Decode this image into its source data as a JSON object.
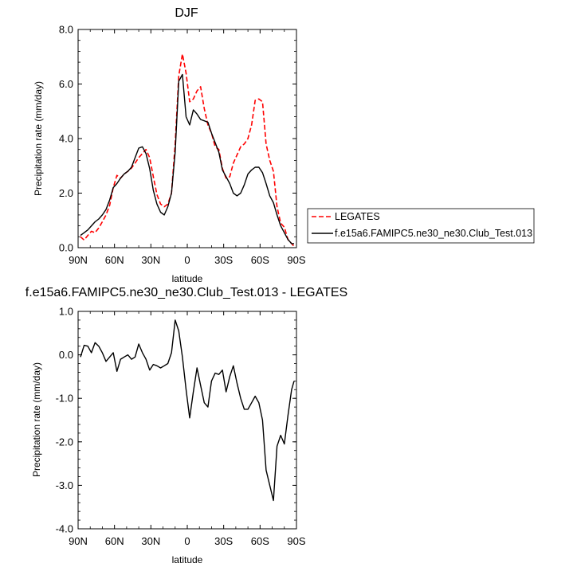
{
  "chart_data": [
    {
      "type": "line",
      "title": "DJF",
      "xlabel": "latitude",
      "ylabel": "Precipitation rate (mm/day)",
      "xlim": [
        90,
        -90
      ],
      "ylim": [
        0,
        8
      ],
      "xtick_values": [
        90,
        60,
        30,
        0,
        -30,
        -60,
        -90
      ],
      "xtick_labels": [
        "90N",
        "60N",
        "30N",
        "0",
        "30S",
        "60S",
        "90S"
      ],
      "ytick_values": [
        0,
        2,
        4,
        6,
        8
      ],
      "ytick_labels": [
        "0.0",
        "2.0",
        "4.0",
        "6.0",
        "8.0"
      ],
      "legend_position": "right",
      "series": [
        {
          "name": "LEGATES",
          "color": "#ff0000",
          "dash": true,
          "x": [
            88,
            85,
            82,
            79,
            76,
            73,
            70,
            67,
            64,
            61,
            58,
            55,
            52,
            49,
            46,
            43,
            40,
            37,
            34,
            31,
            28,
            25,
            22,
            19,
            16,
            13,
            10,
            7,
            4,
            1,
            -2,
            -5,
            -8,
            -11,
            -14,
            -17,
            -20,
            -23,
            -26,
            -29,
            -32,
            -35,
            -38,
            -41,
            -44,
            -47,
            -50,
            -53,
            -56,
            -59,
            -62,
            -65,
            -68,
            -71,
            -74,
            -77,
            -80,
            -83,
            -86,
            -88
          ],
          "y": [
            0.4,
            0.28,
            0.45,
            0.6,
            0.55,
            0.72,
            0.95,
            1.2,
            1.55,
            2.2,
            2.65,
            2.55,
            2.7,
            2.8,
            2.92,
            3.1,
            3.3,
            3.45,
            3.6,
            3.3,
            2.6,
            1.95,
            1.6,
            1.5,
            1.6,
            2.0,
            3.8,
            6.3,
            7.1,
            6.4,
            5.35,
            5.45,
            5.75,
            5.9,
            5.1,
            4.5,
            4.2,
            3.7,
            3.6,
            2.9,
            2.55,
            2.6,
            3.1,
            3.4,
            3.7,
            3.8,
            4.0,
            4.5,
            5.4,
            5.45,
            5.35,
            3.8,
            3.2,
            2.8,
            1.5,
            0.9,
            0.75,
            0.3,
            0.15,
            0.05
          ]
        },
        {
          "name": "f.e15a6.FAMIPC5.ne30_ne30.Club_Test.013",
          "color": "#000000",
          "dash": false,
          "x": [
            88,
            85,
            82,
            79,
            76,
            73,
            70,
            67,
            64,
            61,
            58,
            55,
            52,
            49,
            46,
            43,
            40,
            37,
            34,
            31,
            28,
            25,
            22,
            19,
            16,
            13,
            10,
            7,
            4,
            1,
            -2,
            -5,
            -8,
            -11,
            -14,
            -17,
            -20,
            -23,
            -26,
            -29,
            -32,
            -35,
            -38,
            -41,
            -44,
            -47,
            -50,
            -53,
            -56,
            -59,
            -62,
            -65,
            -68,
            -71,
            -74,
            -77,
            -80,
            -83,
            -86,
            -88
          ],
          "y": [
            0.45,
            0.55,
            0.65,
            0.8,
            0.95,
            1.05,
            1.2,
            1.4,
            1.75,
            2.2,
            2.35,
            2.55,
            2.7,
            2.8,
            2.95,
            3.3,
            3.65,
            3.7,
            3.45,
            2.9,
            2.1,
            1.6,
            1.3,
            1.2,
            1.5,
            2.0,
            3.5,
            6.1,
            6.35,
            4.8,
            4.5,
            5.05,
            4.9,
            4.7,
            4.65,
            4.6,
            4.2,
            3.85,
            3.5,
            2.85,
            2.6,
            2.35,
            2.0,
            1.9,
            2.0,
            2.3,
            2.7,
            2.85,
            2.95,
            2.95,
            2.75,
            2.35,
            1.9,
            1.65,
            1.2,
            0.8,
            0.55,
            0.3,
            0.15,
            0.15
          ]
        }
      ]
    },
    {
      "type": "line",
      "title": "f.e15a6.FAMIPC5.ne30_ne30.Club_Test.013 - LEGATES",
      "xlabel": "latitude",
      "ylabel": "Precipitation rate (mm/day)",
      "xlim": [
        90,
        -90
      ],
      "ylim": [
        -4,
        1
      ],
      "xtick_values": [
        90,
        60,
        30,
        0,
        -30,
        -60,
        -90
      ],
      "xtick_labels": [
        "90N",
        "60N",
        "30N",
        "0",
        "30S",
        "60S",
        "90S"
      ],
      "ytick_values": [
        1,
        0,
        -1,
        -2,
        -3,
        -4
      ],
      "ytick_labels": [
        "1.0",
        "0.0",
        "-1.0",
        "-2.0",
        "-3.0",
        "-4.0"
      ],
      "series": [
        {
          "color": "#000000",
          "dash": false,
          "x": [
            88,
            85,
            82,
            79,
            76,
            73,
            70,
            67,
            64,
            61,
            58,
            55,
            52,
            49,
            46,
            43,
            40,
            37,
            34,
            31,
            28,
            25,
            22,
            19,
            16,
            13,
            10,
            7,
            4,
            1,
            -2,
            -5,
            -8,
            -11,
            -14,
            -17,
            -20,
            -23,
            -26,
            -29,
            -32,
            -35,
            -38,
            -41,
            -44,
            -47,
            -50,
            -53,
            -56,
            -59,
            -62,
            -65,
            -68,
            -71,
            -74,
            -77,
            -80,
            -83,
            -86,
            -88
          ],
          "y": [
            -0.05,
            0.22,
            0.2,
            0.05,
            0.28,
            0.2,
            0.05,
            -0.15,
            -0.05,
            0.05,
            -0.38,
            -0.1,
            -0.05,
            0.0,
            -0.1,
            -0.05,
            0.25,
            0.05,
            -0.1,
            -0.35,
            -0.22,
            -0.25,
            -0.3,
            -0.25,
            -0.2,
            0.05,
            0.8,
            0.55,
            -0.05,
            -0.8,
            -1.45,
            -0.85,
            -0.3,
            -0.7,
            -1.1,
            -1.2,
            -0.6,
            -0.42,
            -0.45,
            -0.35,
            -0.85,
            -0.5,
            -0.25,
            -0.65,
            -1.0,
            -1.25,
            -1.25,
            -1.1,
            -0.95,
            -1.1,
            -1.5,
            -2.65,
            -3.0,
            -3.35,
            -2.1,
            -1.85,
            -2.05,
            -1.4,
            -0.8,
            -0.6
          ]
        }
      ]
    }
  ]
}
